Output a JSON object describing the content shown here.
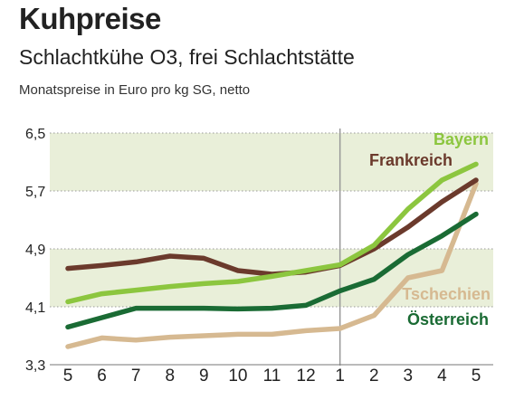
{
  "chart_data": {
    "type": "line",
    "title": "Kuhpreise",
    "subtitle": "Schlachtkühe O3, frei Schlachtstätte",
    "unit_label": "Monatspreise in Euro pro kg SG, netto",
    "x_ticks": [
      "5",
      "6",
      "7",
      "8",
      "9",
      "10",
      "11",
      "12",
      "1",
      "2",
      "3",
      "4",
      "5"
    ],
    "y_ticks": [
      "6,5",
      "5,7",
      "4,9",
      "4,1",
      "3,3"
    ],
    "y_tick_values": [
      6.5,
      5.7,
      4.9,
      4.1,
      3.3
    ],
    "ylim": [
      3.3,
      6.5
    ],
    "year_divider_index": 8,
    "bands": [
      [
        5.7,
        6.5
      ],
      [
        4.1,
        4.9
      ]
    ],
    "band_color": "#e9efd9",
    "series": [
      {
        "name": "Bayern",
        "color": "#8cc63f",
        "values": [
          4.17,
          4.28,
          4.33,
          4.38,
          4.42,
          4.45,
          4.52,
          4.6,
          4.68,
          4.95,
          5.45,
          5.85,
          6.07
        ]
      },
      {
        "name": "Frankreich",
        "color": "#6b3a2c",
        "values": [
          4.63,
          4.67,
          4.72,
          4.8,
          4.77,
          4.6,
          4.55,
          4.58,
          4.67,
          4.9,
          5.2,
          5.55,
          5.85
        ]
      },
      {
        "name": "Tschechien",
        "color": "#d6b991",
        "values": [
          3.55,
          3.67,
          3.64,
          3.68,
          3.7,
          3.72,
          3.72,
          3.77,
          3.8,
          3.98,
          4.5,
          4.6,
          5.8
        ]
      },
      {
        "name": "Österreich",
        "color": "#1a6b34",
        "values": [
          3.82,
          3.95,
          4.08,
          4.08,
          4.08,
          4.07,
          4.08,
          4.12,
          4.32,
          4.48,
          4.82,
          5.08,
          5.38
        ]
      }
    ]
  }
}
